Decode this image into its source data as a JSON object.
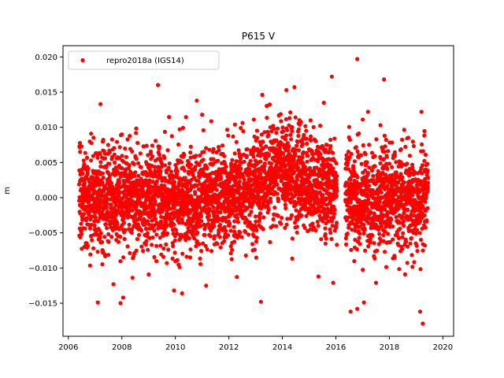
{
  "chart_data": {
    "type": "scatter",
    "title": "P615 V",
    "xlabel": "",
    "ylabel": "m",
    "xlim": [
      2005.8,
      2020.4
    ],
    "ylim": [
      -0.0197,
      0.0216
    ],
    "x_ticks": [
      2006,
      2008,
      2010,
      2012,
      2014,
      2016,
      2018,
      2020
    ],
    "x_tick_labels": [
      "2006",
      "2008",
      "2010",
      "2012",
      "2014",
      "2016",
      "2018",
      "2020"
    ],
    "y_ticks": [
      -0.015,
      -0.01,
      -0.005,
      0.0,
      0.005,
      0.01,
      0.015,
      0.02
    ],
    "y_tick_labels": [
      "−0.015",
      "−0.010",
      "−0.005",
      "0.000",
      "0.005",
      "0.010",
      "0.015",
      "0.020"
    ],
    "grid": false,
    "legend_position": "top-left",
    "series": [
      {
        "name": "repro2018a (IGS14)",
        "color": "#ff0000",
        "marker": "circle",
        "x_range": [
          2006.4,
          2019.45
        ],
        "daily_points_approx": 4300,
        "data_gap": [
          2016.05,
          2016.35
        ],
        "trend_curve": [
          [
            2006.4,
            -0.0005
          ],
          [
            2007.0,
            0.0
          ],
          [
            2007.5,
            0.0
          ],
          [
            2008.0,
            0.0
          ],
          [
            2009.0,
            0.0005
          ],
          [
            2010.0,
            -0.0005
          ],
          [
            2011.0,
            -0.0005
          ],
          [
            2011.5,
            0.0
          ],
          [
            2012.0,
            0.0
          ],
          [
            2013.0,
            0.002
          ],
          [
            2014.0,
            0.004
          ],
          [
            2015.0,
            0.002
          ],
          [
            2016.0,
            0.001
          ],
          [
            2017.0,
            -0.0005
          ],
          [
            2018.0,
            0.0
          ],
          [
            2019.0,
            -0.0005
          ],
          [
            2019.45,
            0.0
          ]
        ],
        "scatter_sd": 0.0045,
        "notable_points": [
          [
            2016.8,
            0.0197
          ],
          [
            2015.85,
            0.0172
          ],
          [
            2017.8,
            0.0168
          ],
          [
            2009.35,
            0.016
          ],
          [
            2014.45,
            0.0157
          ],
          [
            2014.15,
            0.0153
          ],
          [
            2007.2,
            0.0133
          ],
          [
            2010.8,
            0.0138
          ],
          [
            2013.25,
            0.0146
          ],
          [
            2019.2,
            0.0122
          ],
          [
            2017.2,
            0.0122
          ],
          [
            2011.0,
            0.0118
          ],
          [
            2016.55,
            -0.0162
          ],
          [
            2016.8,
            -0.0158
          ],
          [
            2019.25,
            -0.0179
          ],
          [
            2019.15,
            -0.0162
          ],
          [
            2017.05,
            -0.0149
          ],
          [
            2007.1,
            -0.0149
          ],
          [
            2007.95,
            -0.015
          ],
          [
            2013.2,
            -0.0148
          ],
          [
            2010.25,
            -0.0136
          ],
          [
            2009.95,
            -0.0132
          ],
          [
            2008.05,
            -0.0142
          ],
          [
            2011.15,
            -0.0125
          ],
          [
            2017.5,
            -0.0121
          ],
          [
            2015.9,
            -0.0121
          ],
          [
            2015.35,
            -0.0112
          ]
        ]
      }
    ]
  }
}
